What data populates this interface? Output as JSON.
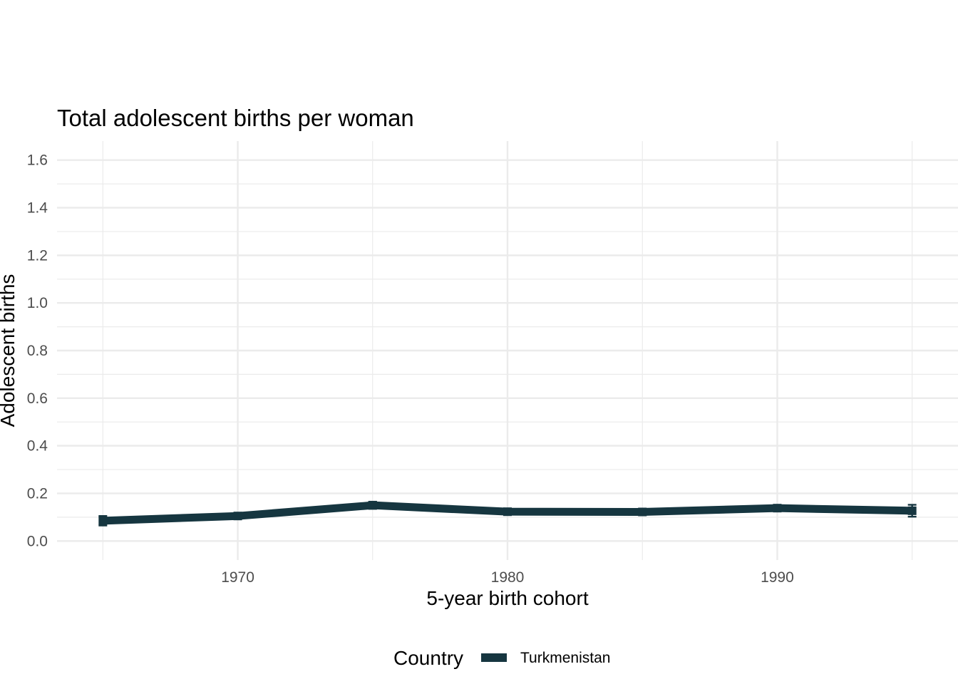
{
  "chart_data": {
    "type": "line",
    "title": "Total adolescent births per woman",
    "xlabel": "5-year birth cohort",
    "ylabel": "Adolescent births",
    "x": [
      1965,
      1970,
      1975,
      1980,
      1985,
      1990,
      1995
    ],
    "series": [
      {
        "name": "Turkmenistan",
        "color": "#163640",
        "values": [
          0.085,
          0.105,
          0.15,
          0.123,
          0.122,
          0.138,
          0.127
        ],
        "error_low": [
          0.065,
          0.095,
          0.135,
          0.113,
          0.113,
          0.128,
          0.102
        ],
        "error_high": [
          0.105,
          0.115,
          0.165,
          0.133,
          0.131,
          0.148,
          0.152
        ]
      }
    ],
    "xlim": [
      1963.3,
      1996.7
    ],
    "ylim": [
      -0.08,
      1.68
    ],
    "x_ticks": [
      1970,
      1980,
      1990
    ],
    "x_tick_labels": [
      "1970",
      "1980",
      "1990"
    ],
    "y_ticks": [
      0.0,
      0.2,
      0.4,
      0.6,
      0.8,
      1.0,
      1.2,
      1.4,
      1.6
    ],
    "y_tick_labels": [
      "0.0",
      "0.2",
      "0.4",
      "0.6",
      "0.8",
      "1.0",
      "1.2",
      "1.4",
      "1.6"
    ],
    "grid": true,
    "legend": {
      "title": "Country",
      "placement": "bottom",
      "entries": [
        "Turkmenistan"
      ]
    }
  }
}
